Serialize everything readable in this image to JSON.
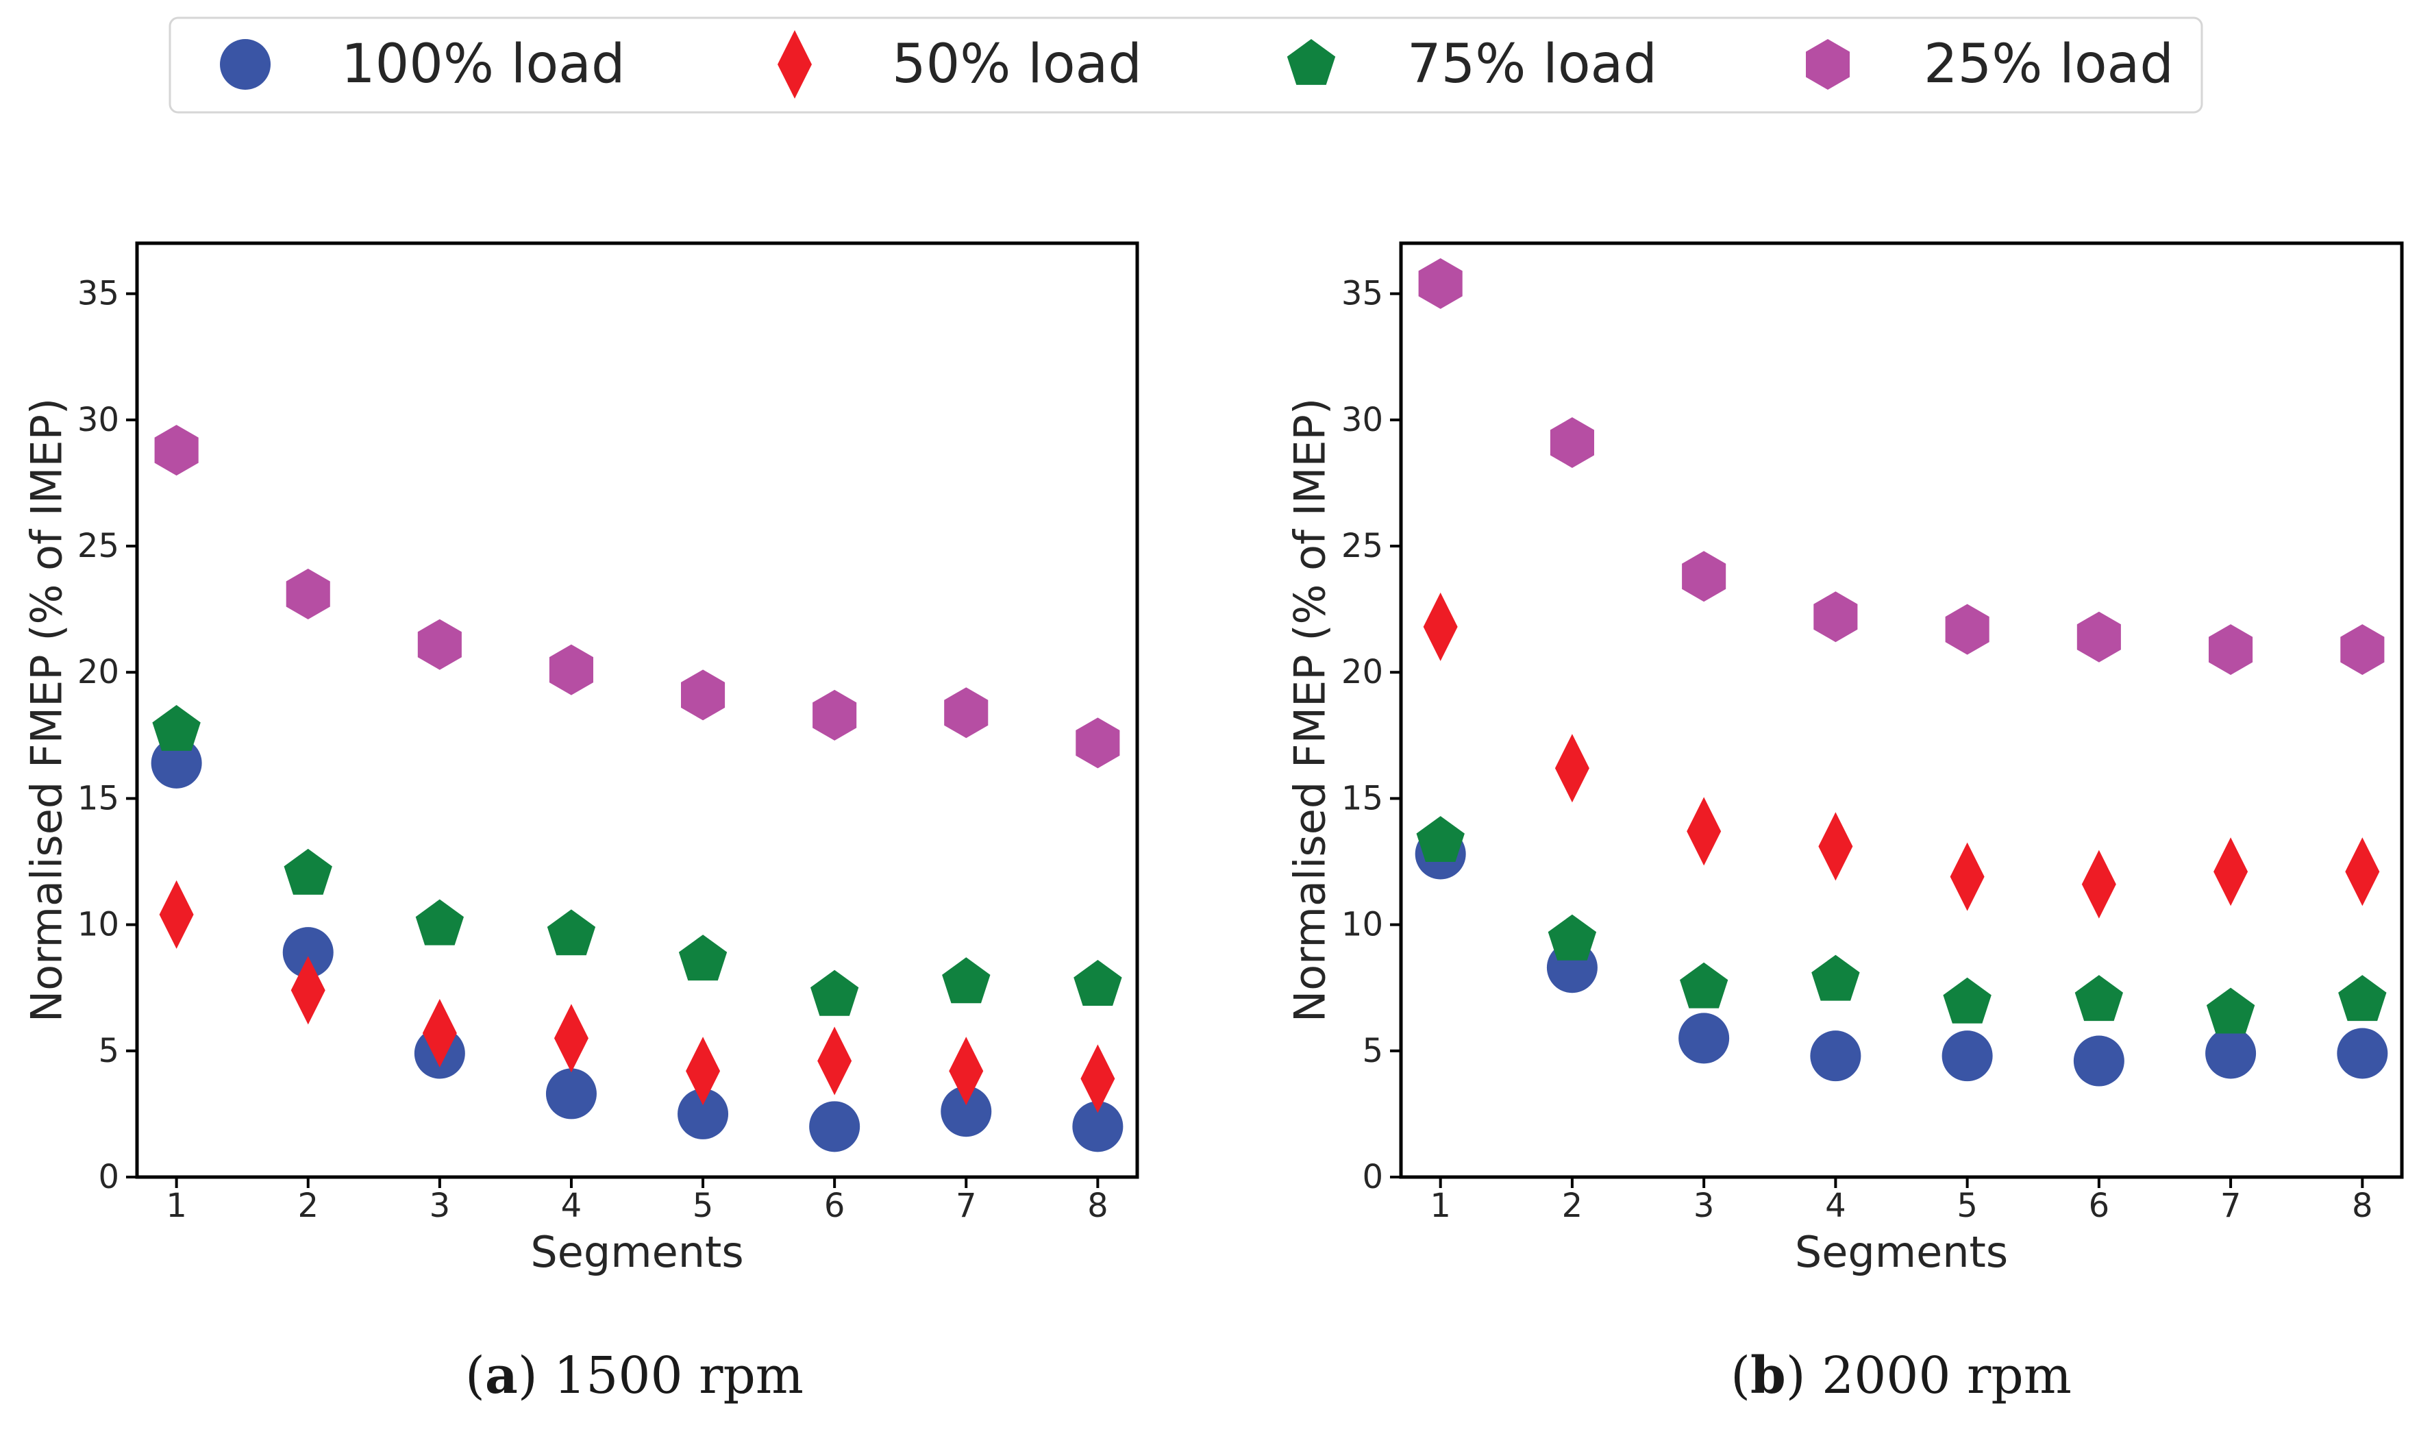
{
  "legend": {
    "items": [
      {
        "label": "100% load",
        "marker": "circle",
        "color": "#3a55a5"
      },
      {
        "label": "50% load",
        "marker": "diamond",
        "color": "#ee1c25"
      },
      {
        "label": "75% load",
        "marker": "pentagon",
        "color": "#10823f"
      },
      {
        "label": "25% load",
        "marker": "hexagon",
        "color": "#b64ea3"
      }
    ]
  },
  "chart_data": [
    {
      "type": "scatter",
      "caption_letter": "a",
      "caption_text": "1500 rpm",
      "xlabel": "Segments",
      "ylabel": "Normalised FMEP (% of IMEP)",
      "x": [
        1,
        2,
        3,
        4,
        5,
        6,
        7,
        8
      ],
      "xticks": [
        "1",
        "2",
        "3",
        "4",
        "5",
        "6",
        "7",
        "8"
      ],
      "yticks": [
        "0",
        "5",
        "10",
        "15",
        "20",
        "25",
        "30",
        "35"
      ],
      "xlim": [
        0.7,
        8.3
      ],
      "ylim": [
        0,
        37
      ],
      "series": [
        {
          "name": "100% load",
          "values": [
            16.4,
            8.9,
            4.9,
            3.3,
            2.5,
            2.0,
            2.6,
            2.0
          ]
        },
        {
          "name": "50% load",
          "values": [
            10.4,
            7.4,
            5.7,
            5.5,
            4.2,
            4.6,
            4.2,
            3.9
          ]
        },
        {
          "name": "75% load",
          "values": [
            17.7,
            12.0,
            10.0,
            9.6,
            8.6,
            7.2,
            7.7,
            7.6
          ]
        },
        {
          "name": "25% load",
          "values": [
            28.8,
            23.1,
            21.1,
            20.1,
            19.1,
            18.3,
            18.4,
            17.2
          ]
        }
      ]
    },
    {
      "type": "scatter",
      "caption_letter": "b",
      "caption_text": "2000 rpm",
      "xlabel": "Segments",
      "ylabel": "Normalised FMEP (% of IMEP)",
      "x": [
        1,
        2,
        3,
        4,
        5,
        6,
        7,
        8
      ],
      "xticks": [
        "1",
        "2",
        "3",
        "4",
        "5",
        "6",
        "7",
        "8"
      ],
      "yticks": [
        "0",
        "5",
        "10",
        "15",
        "20",
        "25",
        "30",
        "35"
      ],
      "xlim": [
        0.7,
        8.3
      ],
      "ylim": [
        0,
        37
      ],
      "series": [
        {
          "name": "100% load",
          "values": [
            12.8,
            8.3,
            5.5,
            4.8,
            4.8,
            4.6,
            4.9,
            4.9
          ]
        },
        {
          "name": "50% load",
          "values": [
            21.8,
            16.2,
            13.7,
            13.1,
            11.9,
            11.6,
            12.1,
            12.1
          ]
        },
        {
          "name": "75% load",
          "values": [
            13.3,
            9.4,
            7.5,
            7.8,
            6.9,
            7.0,
            6.5,
            7.0
          ]
        },
        {
          "name": "25% load",
          "values": [
            35.4,
            29.1,
            23.8,
            22.2,
            21.7,
            21.4,
            20.9,
            20.9
          ]
        }
      ]
    }
  ]
}
